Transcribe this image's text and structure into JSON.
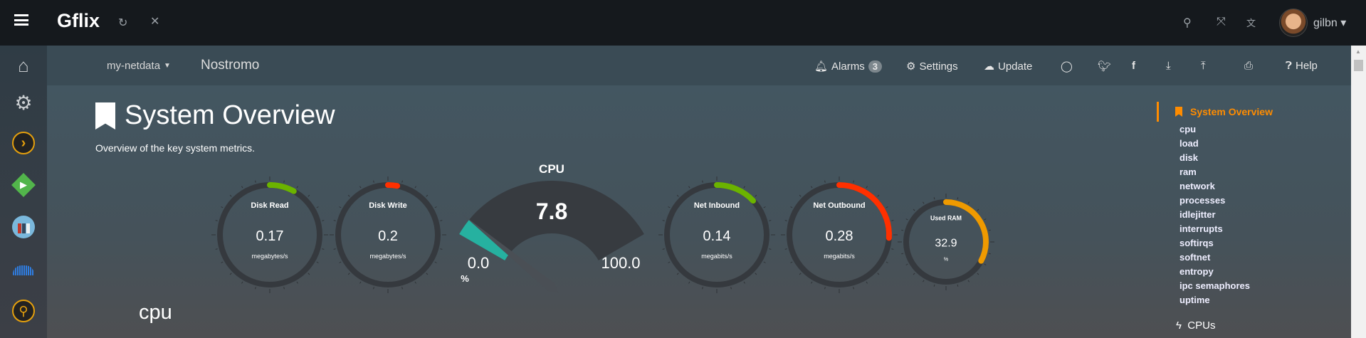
{
  "topbar": {
    "brand": "Gflix",
    "user": "gilbn",
    "icons": [
      "menu-icon",
      "refresh-icon",
      "close-icon",
      "search-icon",
      "fullscreen-icon",
      "translate-icon"
    ]
  },
  "leftbar": {
    "icons": [
      "home-icon",
      "gear-icon",
      "plex-icon",
      "emby-icon",
      "calibre-icon",
      "soundcloud-icon",
      "search-app-icon"
    ]
  },
  "navbar": {
    "host_menu": "my-netdata",
    "hostname": "Nostromo",
    "alarms": "Alarms",
    "alarm_count": "3",
    "settings": "Settings",
    "update": "Update",
    "help": "Help"
  },
  "main": {
    "title": "System Overview",
    "subtitle": "Overview of the key system metrics.",
    "section": "cpu"
  },
  "gauges": [
    {
      "title": "Disk Read",
      "value": "0.17",
      "units": "megabytes/s",
      "fraction": 0.08,
      "color": "#6bb300"
    },
    {
      "title": "Disk Write",
      "value": "0.2",
      "units": "megabytes/s",
      "fraction": 0.03,
      "color": "#ff3000"
    },
    {
      "title": "Net Inbound",
      "value": "0.14",
      "units": "megabits/s",
      "fraction": 0.13,
      "color": "#6bb300"
    },
    {
      "title": "Net Outbound",
      "value": "0.28",
      "units": "megabits/s",
      "fraction": 0.26,
      "color": "#ff3000"
    },
    {
      "title": "Used RAM",
      "value": "32.9",
      "units": "%",
      "fraction": 0.329,
      "color": "#ef9a00"
    }
  ],
  "cpu_gauge": {
    "title": "CPU",
    "value": "7.8",
    "min": "0.0",
    "max": "100.0",
    "units": "%",
    "percent": 7.8,
    "color": "#26b1a0"
  },
  "right_nav": {
    "active": "System Overview",
    "items": [
      "cpu",
      "load",
      "disk",
      "ram",
      "network",
      "processes",
      "idlejitter",
      "interrupts",
      "softirqs",
      "softnet",
      "entropy",
      "ipc semaphores",
      "uptime"
    ],
    "next_section": "CPUs",
    "accent": "#ff8c00"
  }
}
